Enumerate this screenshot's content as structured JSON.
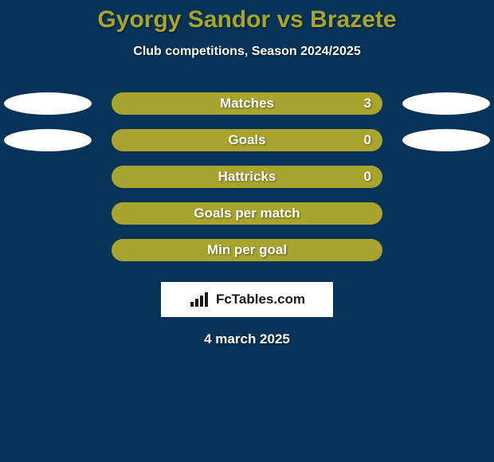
{
  "background_color": "#083358",
  "title": {
    "text": "Gyorgy Sandor vs Brazete",
    "color": "#a9a42e",
    "fontsize": 30
  },
  "subtitle": {
    "text": "Club competitions, Season 2024/2025",
    "color": "#ffffff",
    "fontsize": 16
  },
  "bar_color": "#a9a42e",
  "bar_text_color": "#ffffff",
  "ellipse_color": "#ffffff",
  "rows": [
    {
      "label": "Matches",
      "value": "3",
      "show_value": true,
      "left_ellipse": true,
      "right_ellipse": true
    },
    {
      "label": "Goals",
      "value": "0",
      "show_value": true,
      "left_ellipse": true,
      "right_ellipse": true
    },
    {
      "label": "Hattricks",
      "value": "0",
      "show_value": true,
      "left_ellipse": false,
      "right_ellipse": false
    },
    {
      "label": "Goals per match",
      "value": "",
      "show_value": false,
      "left_ellipse": false,
      "right_ellipse": false
    },
    {
      "label": "Min per goal",
      "value": "",
      "show_value": false,
      "left_ellipse": false,
      "right_ellipse": false
    }
  ],
  "logo": {
    "box_background": "#ffffff",
    "text": "FcTables.com",
    "text_color": "#15171a",
    "icon_color": "#15171a"
  },
  "date": {
    "text": "4 march 2025",
    "color": "#ffffff",
    "fontsize": 17
  }
}
